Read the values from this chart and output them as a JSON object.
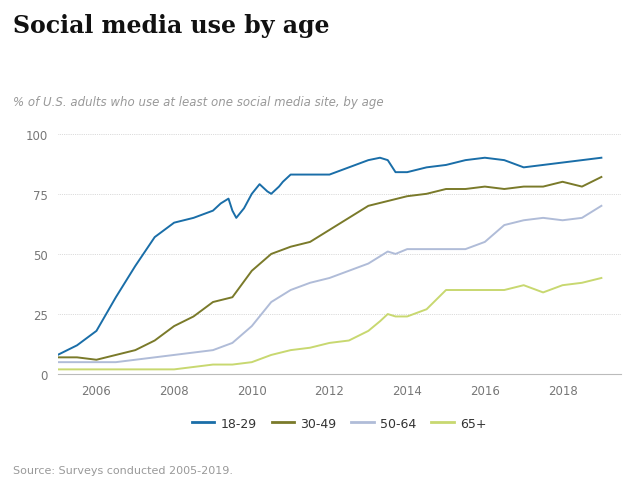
{
  "title": "Social media use by age",
  "subtitle": "% of U.S. adults who use at least one social media site, by age",
  "source": "Source: Surveys conducted 2005-2019.",
  "colors": {
    "18-29": "#1a6ea8",
    "30-49": "#7a7a2a",
    "50-64": "#b0bcd8",
    "65+": "#c8d870"
  },
  "legend_labels": [
    "18-29",
    "30-49",
    "50-64",
    "65+"
  ],
  "ylim": [
    0,
    100
  ],
  "yticks": [
    0,
    25,
    50,
    75,
    100
  ],
  "xlim": [
    2005.0,
    2019.5
  ],
  "xticks": [
    2006,
    2008,
    2010,
    2012,
    2014,
    2016,
    2018
  ],
  "background": "#ffffff",
  "data": {
    "18-29": {
      "x": [
        2005.0,
        2005.5,
        2006.0,
        2006.5,
        2007.0,
        2007.5,
        2008.0,
        2008.5,
        2009.0,
        2009.2,
        2009.4,
        2009.5,
        2009.6,
        2009.8,
        2010.0,
        2010.2,
        2010.4,
        2010.5,
        2010.7,
        2010.8,
        2011.0,
        2011.5,
        2012.0,
        2012.5,
        2013.0,
        2013.3,
        2013.5,
        2013.7,
        2014.0,
        2014.5,
        2015.0,
        2015.5,
        2016.0,
        2016.5,
        2017.0,
        2017.5,
        2018.0,
        2018.5,
        2019.0
      ],
      "y": [
        8,
        12,
        18,
        32,
        45,
        57,
        63,
        65,
        68,
        71,
        73,
        68,
        65,
        69,
        75,
        79,
        76,
        75,
        78,
        80,
        83,
        83,
        83,
        86,
        89,
        90,
        89,
        84,
        84,
        86,
        87,
        89,
        90,
        89,
        86,
        87,
        88,
        89,
        90
      ]
    },
    "30-49": {
      "x": [
        2005.0,
        2005.5,
        2006.0,
        2006.5,
        2007.0,
        2007.5,
        2008.0,
        2008.5,
        2009.0,
        2009.5,
        2010.0,
        2010.5,
        2011.0,
        2011.5,
        2012.0,
        2012.5,
        2013.0,
        2013.5,
        2014.0,
        2014.5,
        2015.0,
        2015.5,
        2016.0,
        2016.5,
        2017.0,
        2017.5,
        2018.0,
        2018.5,
        2019.0
      ],
      "y": [
        7,
        7,
        6,
        8,
        10,
        14,
        20,
        24,
        30,
        32,
        43,
        50,
        53,
        55,
        60,
        65,
        70,
        72,
        74,
        75,
        77,
        77,
        78,
        77,
        78,
        78,
        80,
        78,
        82
      ]
    },
    "50-64": {
      "x": [
        2005.0,
        2005.5,
        2006.0,
        2006.5,
        2007.0,
        2007.5,
        2008.0,
        2008.5,
        2009.0,
        2009.5,
        2010.0,
        2010.5,
        2011.0,
        2011.5,
        2012.0,
        2012.5,
        2013.0,
        2013.3,
        2013.5,
        2013.7,
        2014.0,
        2014.5,
        2015.0,
        2015.5,
        2016.0,
        2016.5,
        2017.0,
        2017.5,
        2018.0,
        2018.5,
        2019.0
      ],
      "y": [
        5,
        5,
        5,
        5,
        6,
        7,
        8,
        9,
        10,
        13,
        20,
        30,
        35,
        38,
        40,
        43,
        46,
        49,
        51,
        50,
        52,
        52,
        52,
        52,
        55,
        62,
        64,
        65,
        64,
        65,
        70
      ]
    },
    "65+": {
      "x": [
        2005.0,
        2005.5,
        2006.0,
        2006.5,
        2007.0,
        2007.5,
        2008.0,
        2008.5,
        2009.0,
        2009.5,
        2010.0,
        2010.5,
        2011.0,
        2011.5,
        2012.0,
        2012.5,
        2013.0,
        2013.3,
        2013.5,
        2013.7,
        2014.0,
        2014.5,
        2015.0,
        2015.5,
        2016.0,
        2016.5,
        2017.0,
        2017.5,
        2018.0,
        2018.5,
        2019.0
      ],
      "y": [
        2,
        2,
        2,
        2,
        2,
        2,
        2,
        3,
        4,
        4,
        5,
        8,
        10,
        11,
        13,
        14,
        18,
        22,
        25,
        24,
        24,
        27,
        35,
        35,
        35,
        35,
        37,
        34,
        37,
        38,
        40
      ]
    }
  }
}
